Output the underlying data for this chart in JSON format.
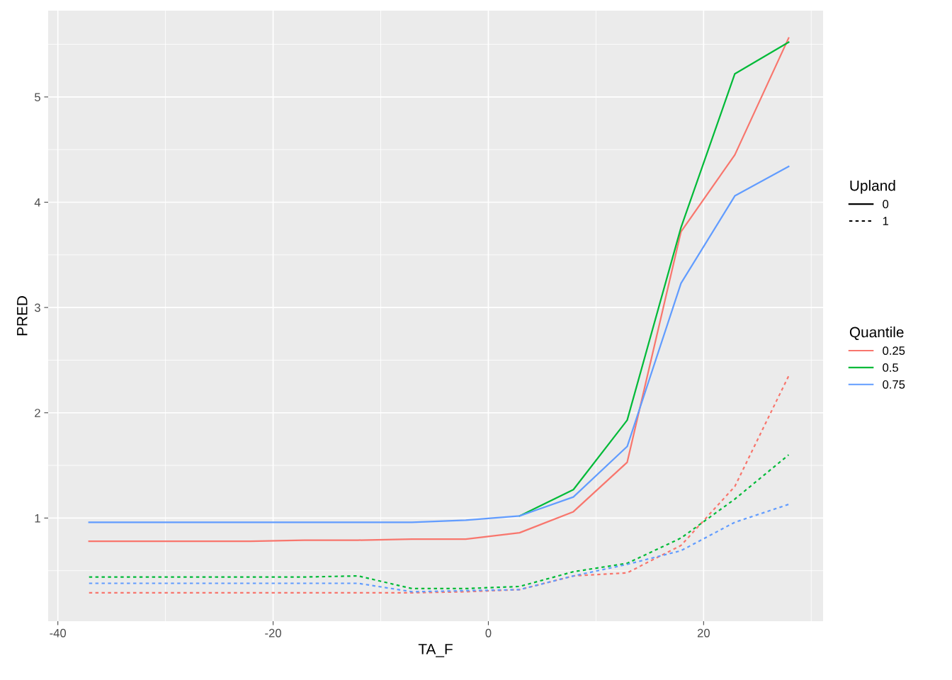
{
  "chart_data": {
    "type": "line",
    "xlabel": "TA_F",
    "ylabel": "PRED",
    "x": [
      -37.1,
      -32.1,
      -27.1,
      -22.1,
      -17.1,
      -12.1,
      -7.1,
      -2.1,
      2.9,
      7.9,
      12.9,
      17.9,
      22.9,
      27.9
    ],
    "xlim": [
      -40.9,
      31.1
    ],
    "xticks": [
      -40,
      -20,
      0,
      20
    ],
    "ylim": [
      0.02,
      5.82
    ],
    "yticks": [
      1,
      2,
      3,
      4,
      5
    ],
    "grid": true,
    "legend": "right",
    "legend_title": [
      "Upland",
      "Quantile"
    ],
    "annotations": [
      "0",
      "1"
    ],
    "series": [
      {
        "name": "0.25",
        "color": "#f8766d",
        "line_style": "solid",
        "values": [
          0.78,
          0.78,
          0.78,
          0.78,
          0.79,
          0.79,
          0.8,
          0.8,
          0.86,
          1.06,
          1.53,
          3.72,
          4.45,
          5.56
        ]
      },
      {
        "name": "0.5",
        "color": "#00ba38",
        "line_style": "solid",
        "values": [
          null,
          null,
          null,
          null,
          null,
          null,
          null,
          null,
          1.02,
          1.27,
          1.93,
          3.76,
          5.22,
          5.52
        ]
      },
      {
        "name": "0.75",
        "color": "#619cff",
        "line_style": "solid",
        "values": [
          0.96,
          0.96,
          0.96,
          0.96,
          0.96,
          0.96,
          0.96,
          0.98,
          1.02,
          1.2,
          1.68,
          3.23,
          4.06,
          4.34
        ]
      },
      {
        "color": "#f8766d",
        "line_style": "dotted",
        "values": [
          0.29,
          0.29,
          0.29,
          0.29,
          0.29,
          0.29,
          0.29,
          0.3,
          0.32,
          0.45,
          0.48,
          0.74,
          1.3,
          2.35
        ]
      },
      {
        "color": "#00ba38",
        "line_style": "dotted",
        "values": [
          0.44,
          0.44,
          0.44,
          0.44,
          0.44,
          0.45,
          0.33,
          0.33,
          0.35,
          0.49,
          0.57,
          0.81,
          1.18,
          1.6
        ]
      },
      {
        "color": "#619cff",
        "line_style": "dotted",
        "values": [
          0.38,
          0.38,
          0.38,
          0.38,
          0.38,
          0.38,
          0.3,
          0.31,
          0.32,
          0.45,
          0.56,
          0.69,
          0.96,
          1.13
        ]
      }
    ]
  }
}
